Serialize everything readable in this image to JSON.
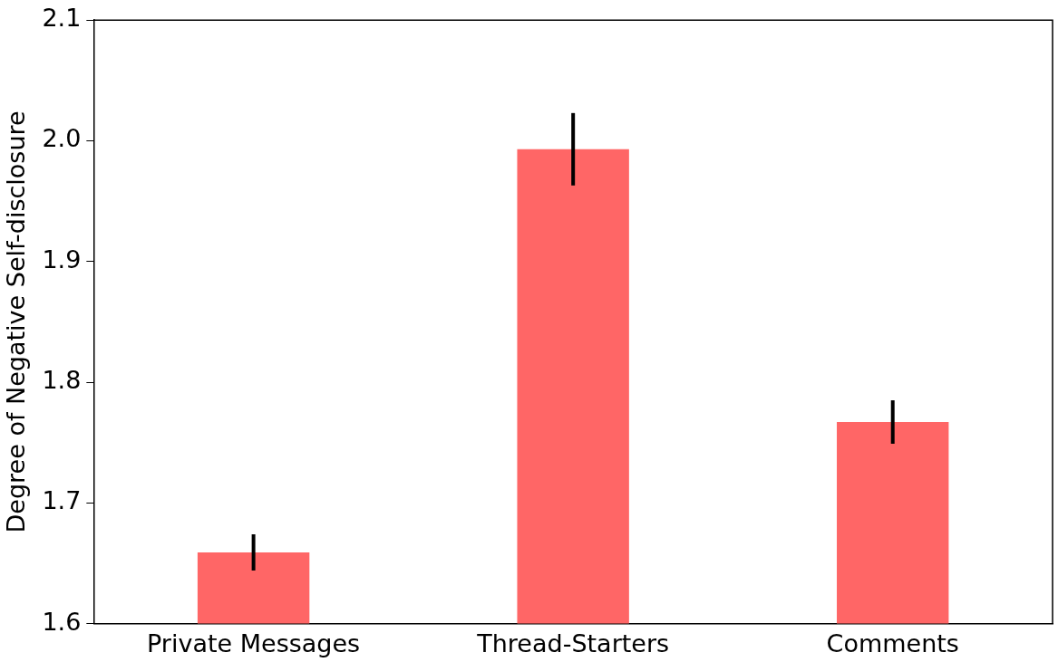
{
  "chart_data": {
    "type": "bar",
    "ylabel": "Degree of Negative Self-disclosure",
    "categories": [
      "Private Messages",
      "Thread-Starters",
      "Comments"
    ],
    "values": [
      1.659,
      1.993,
      1.767
    ],
    "errors": [
      0.015,
      0.03,
      0.018
    ],
    "color": "#ff6666",
    "ylim": [
      1.6,
      2.1
    ],
    "yticks": [
      1.6,
      1.7,
      1.8,
      1.9,
      {
        "value": 2,
        "label": "2.0"
      },
      2.1
    ],
    "grid": false,
    "legend": false
  }
}
